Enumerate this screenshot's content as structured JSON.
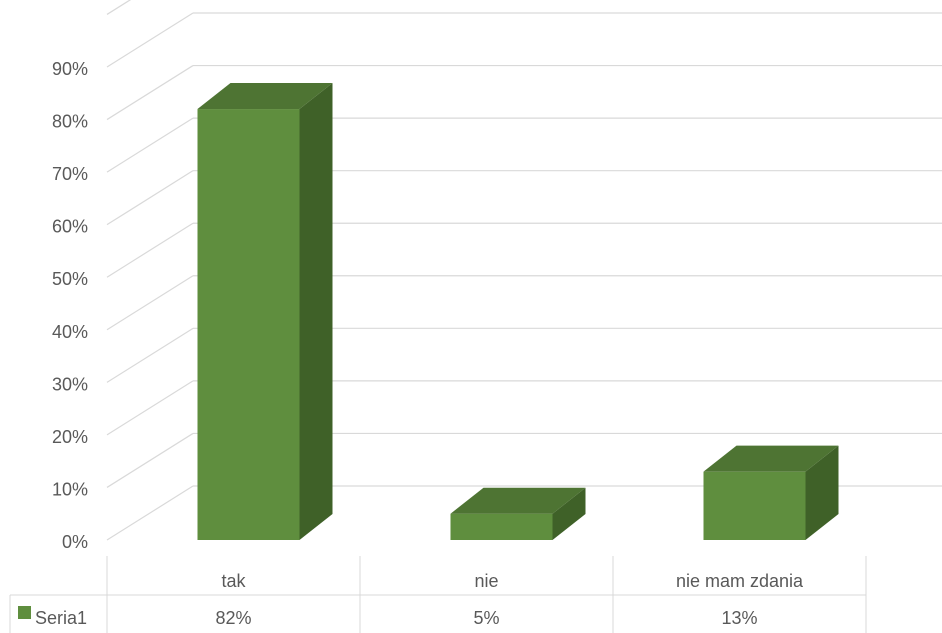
{
  "chart_data": {
    "type": "bar",
    "categories": [
      "tak",
      "nie",
      "nie mam zdania"
    ],
    "series": [
      {
        "name": "Seria1",
        "values": [
          82,
          5,
          13
        ],
        "labels": [
          "82%",
          "5%",
          "13%"
        ]
      }
    ],
    "ylim": [
      0,
      90
    ],
    "ytick_step": 10,
    "yticks": [
      "0%",
      "10%",
      "20%",
      "30%",
      "40%",
      "50%",
      "60%",
      "70%",
      "80%",
      "90%"
    ],
    "grid": true,
    "style": "3d-column",
    "legend": "data-table-bottom-left",
    "colors": {
      "front": "#5f8e3e",
      "side": "#3f6128",
      "top": "#4e7433"
    }
  }
}
